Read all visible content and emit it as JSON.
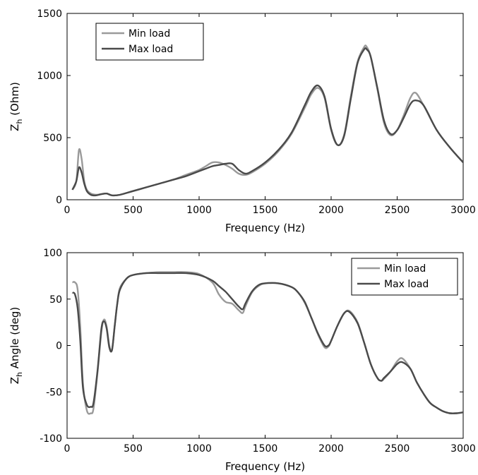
{
  "chart_data": [
    {
      "type": "line",
      "xlabel": "Frequency (Hz)",
      "ylabel": {
        "main": "Z",
        "sub": "h",
        "rest": " (Ohm)"
      },
      "xlim": [
        0,
        3000
      ],
      "ylim": [
        0,
        1500
      ],
      "xticks": [
        "0",
        "500",
        "1000",
        "1500",
        "2000",
        "2500",
        "3000"
      ],
      "yticks": [
        "0",
        "500",
        "1000",
        "1500"
      ],
      "legend_position": "top-left",
      "grid": false,
      "series": [
        {
          "name": "Min load",
          "color": "#9a9a9a",
          "x": [
            40,
            70,
            90,
            110,
            130,
            150,
            180,
            220,
            260,
            300,
            340,
            400,
            500,
            600,
            700,
            800,
            900,
            1000,
            1050,
            1100,
            1150,
            1200,
            1250,
            1300,
            1350,
            1400,
            1500,
            1600,
            1700,
            1800,
            1850,
            1900,
            1950,
            2000,
            2050,
            2100,
            2150,
            2200,
            2250,
            2270,
            2300,
            2350,
            2400,
            2450,
            2500,
            2550,
            2600,
            2640,
            2700,
            2800,
            2900,
            3000
          ],
          "y": [
            80,
            150,
            400,
            330,
            150,
            80,
            50,
            40,
            45,
            50,
            35,
            40,
            70,
            100,
            130,
            160,
            200,
            240,
            270,
            300,
            300,
            280,
            250,
            210,
            200,
            220,
            290,
            390,
            530,
            740,
            850,
            900,
            820,
            560,
            440,
            530,
            840,
            1110,
            1230,
            1230,
            1150,
            890,
            620,
            520,
            560,
            680,
            820,
            860,
            760,
            560,
            420,
            300
          ]
        },
        {
          "name": "Max load",
          "color": "#4a4a4a",
          "x": [
            40,
            70,
            90,
            110,
            130,
            150,
            180,
            220,
            260,
            300,
            340,
            400,
            500,
            600,
            700,
            800,
            900,
            1000,
            1050,
            1100,
            1150,
            1200,
            1250,
            1300,
            1350,
            1400,
            1500,
            1600,
            1700,
            1800,
            1850,
            1900,
            1950,
            2000,
            2050,
            2100,
            2150,
            2200,
            2250,
            2270,
            2300,
            2350,
            2400,
            2450,
            2500,
            2550,
            2600,
            2640,
            2700,
            2800,
            2900,
            3000
          ],
          "y": [
            80,
            150,
            260,
            220,
            130,
            70,
            40,
            35,
            45,
            50,
            35,
            40,
            70,
            100,
            130,
            160,
            190,
            230,
            250,
            270,
            280,
            290,
            290,
            240,
            210,
            230,
            300,
            400,
            540,
            760,
            870,
            920,
            830,
            570,
            440,
            520,
            820,
            1100,
            1210,
            1210,
            1150,
            900,
            640,
            530,
            560,
            660,
            770,
            800,
            760,
            560,
            420,
            300
          ]
        }
      ]
    },
    {
      "type": "line",
      "xlabel": "Frequency (Hz)",
      "ylabel": {
        "main": "Z",
        "sub": "h",
        "rest": " Angle (deg)"
      },
      "xlim": [
        0,
        3000
      ],
      "ylim": [
        -100,
        100
      ],
      "xticks": [
        "0",
        "500",
        "1000",
        "1500",
        "2000",
        "2500",
        "3000"
      ],
      "yticks": [
        "-100",
        "-50",
        "0",
        "50",
        "100"
      ],
      "legend_position": "top-right",
      "grid": false,
      "series": [
        {
          "name": "Min load",
          "color": "#9a9a9a",
          "x": [
            40,
            60,
            80,
            100,
            120,
            150,
            180,
            200,
            230,
            260,
            280,
            300,
            320,
            340,
            360,
            380,
            400,
            450,
            500,
            600,
            700,
            800,
            900,
            1000,
            1100,
            1150,
            1200,
            1250,
            1300,
            1330,
            1350,
            1400,
            1450,
            1500,
            1600,
            1700,
            1750,
            1800,
            1850,
            1900,
            1950,
            1980,
            2000,
            2050,
            2100,
            2140,
            2200,
            2250,
            2300,
            2350,
            2380,
            2400,
            2450,
            2500,
            2540,
            2600,
            2650,
            2700,
            2750,
            2800,
            2850,
            2900,
            2950,
            3000
          ],
          "y": [
            68,
            68,
            60,
            20,
            -40,
            -70,
            -73,
            -68,
            -30,
            15,
            28,
            20,
            0,
            -5,
            20,
            45,
            62,
            72,
            76,
            78,
            79,
            79,
            79,
            77,
            68,
            55,
            47,
            45,
            38,
            35,
            42,
            57,
            64,
            67,
            67,
            63,
            57,
            46,
            30,
            12,
            -2,
            -1,
            5,
            22,
            35,
            37,
            25,
            3,
            -20,
            -35,
            -38,
            -36,
            -28,
            -17,
            -14,
            -25,
            -40,
            -52,
            -62,
            -67,
            -71,
            -73,
            -73,
            -72
          ]
        },
        {
          "name": "Max load",
          "color": "#4a4a4a",
          "x": [
            40,
            60,
            80,
            100,
            120,
            150,
            180,
            200,
            230,
            260,
            280,
            300,
            320,
            340,
            360,
            380,
            400,
            450,
            500,
            600,
            700,
            800,
            900,
            1000,
            1100,
            1150,
            1200,
            1250,
            1300,
            1330,
            1350,
            1400,
            1450,
            1500,
            1600,
            1700,
            1750,
            1800,
            1850,
            1900,
            1950,
            1980,
            2000,
            2050,
            2100,
            2140,
            2200,
            2250,
            2300,
            2350,
            2380,
            2400,
            2450,
            2500,
            2540,
            2600,
            2650,
            2700,
            2750,
            2800,
            2850,
            2900,
            2950,
            3000
          ],
          "y": [
            57,
            55,
            40,
            5,
            -45,
            -64,
            -66,
            -62,
            -28,
            18,
            26,
            18,
            -2,
            -5,
            20,
            45,
            60,
            72,
            76,
            78,
            78,
            78,
            78,
            76,
            70,
            64,
            58,
            50,
            42,
            39,
            45,
            58,
            65,
            67,
            67,
            63,
            57,
            47,
            30,
            13,
            0,
            0,
            5,
            22,
            35,
            36,
            24,
            3,
            -20,
            -35,
            -38,
            -35,
            -28,
            -20,
            -18,
            -25,
            -40,
            -52,
            -62,
            -67,
            -71,
            -73,
            -73,
            -72
          ]
        }
      ]
    }
  ]
}
